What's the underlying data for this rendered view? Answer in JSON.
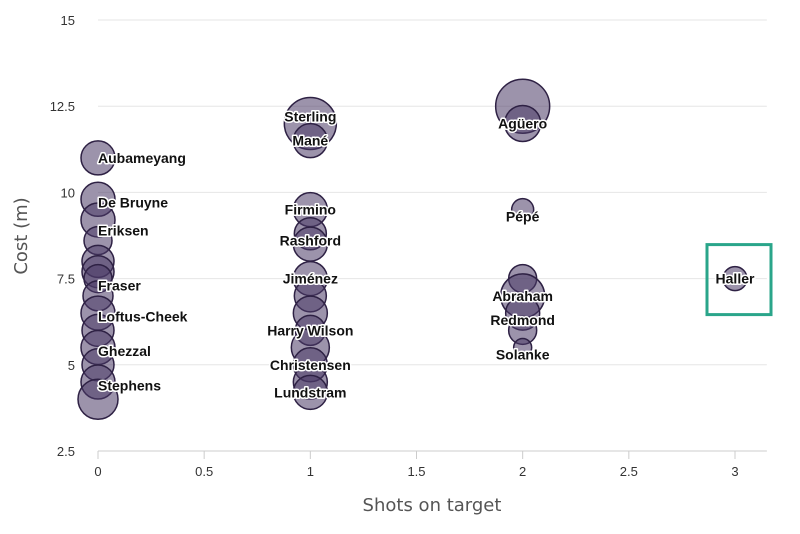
{
  "chart_data": {
    "type": "scatter",
    "title": "",
    "xlabel": "Shots on target",
    "ylabel": "Cost (m)",
    "xlim": [
      0,
      3.15
    ],
    "ylim": [
      2.5,
      15
    ],
    "x_ticks": [
      "0",
      "0.5",
      "1",
      "1.5",
      "2",
      "2.5",
      "3"
    ],
    "x_tick_values": [
      0,
      0.5,
      1,
      1.5,
      2,
      2.5,
      3
    ],
    "y_ticks": [
      "2.5",
      "5",
      "7.5",
      "10",
      "12.5",
      "15"
    ],
    "y_tick_values": [
      2.5,
      5,
      7.5,
      10,
      12.5,
      15
    ],
    "grid": "horizontal",
    "colors": {
      "bubble_fill": "#4a3a66",
      "bubble_stroke": "#2e2144",
      "highlight_box": "#2aa58a"
    },
    "highlight": "Haller",
    "bubbles": [
      {
        "x": 0,
        "y": 11.0,
        "size": 17
      },
      {
        "x": 0,
        "y": 9.8,
        "size": 17
      },
      {
        "x": 0,
        "y": 9.2,
        "size": 17
      },
      {
        "x": 0,
        "y": 8.6,
        "size": 14
      },
      {
        "x": 0,
        "y": 8.0,
        "size": 16
      },
      {
        "x": 0,
        "y": 7.7,
        "size": 16
      },
      {
        "x": 0,
        "y": 7.5,
        "size": 14
      },
      {
        "x": 0,
        "y": 7.0,
        "size": 15
      },
      {
        "x": 0,
        "y": 6.5,
        "size": 17
      },
      {
        "x": 0,
        "y": 6.0,
        "size": 16
      },
      {
        "x": 0,
        "y": 5.5,
        "size": 17
      },
      {
        "x": 0,
        "y": 5.0,
        "size": 16
      },
      {
        "x": 0,
        "y": 4.5,
        "size": 17
      },
      {
        "x": 0,
        "y": 4.0,
        "size": 20
      },
      {
        "x": 1,
        "y": 12.0,
        "size": 26
      },
      {
        "x": 1,
        "y": 11.5,
        "size": 17
      },
      {
        "x": 1,
        "y": 9.5,
        "size": 17
      },
      {
        "x": 1,
        "y": 8.8,
        "size": 16
      },
      {
        "x": 1,
        "y": 8.5,
        "size": 17
      },
      {
        "x": 1,
        "y": 7.5,
        "size": 17
      },
      {
        "x": 1,
        "y": 7.0,
        "size": 16
      },
      {
        "x": 1,
        "y": 6.5,
        "size": 17
      },
      {
        "x": 1,
        "y": 6.0,
        "size": 15
      },
      {
        "x": 1,
        "y": 5.5,
        "size": 19
      },
      {
        "x": 1,
        "y": 5.0,
        "size": 17
      },
      {
        "x": 1,
        "y": 4.5,
        "size": 17
      },
      {
        "x": 1,
        "y": 4.2,
        "size": 17
      },
      {
        "x": 2,
        "y": 12.5,
        "size": 27
      },
      {
        "x": 2,
        "y": 12.0,
        "size": 18
      },
      {
        "x": 2,
        "y": 9.5,
        "size": 11
      },
      {
        "x": 2,
        "y": 7.5,
        "size": 14
      },
      {
        "x": 2,
        "y": 7.0,
        "size": 22
      },
      {
        "x": 2,
        "y": 6.5,
        "size": 17
      },
      {
        "x": 2,
        "y": 6.0,
        "size": 14
      },
      {
        "x": 2,
        "y": 5.5,
        "size": 9
      },
      {
        "x": 3,
        "y": 7.5,
        "size": 12
      }
    ],
    "labels": [
      {
        "text": "Aubameyang",
        "x": 0,
        "y": 11.0
      },
      {
        "text": "De Bruyne",
        "x": 0,
        "y": 9.7
      },
      {
        "text": "Eriksen",
        "x": 0,
        "y": 8.9
      },
      {
        "text": "Fraser",
        "x": 0,
        "y": 7.3
      },
      {
        "text": "Loftus-Cheek",
        "x": 0,
        "y": 6.4
      },
      {
        "text": "Ghezzal",
        "x": 0,
        "y": 5.4
      },
      {
        "text": "Stephens",
        "x": 0,
        "y": 4.4
      },
      {
        "text": "Sterling",
        "x": 1,
        "y": 12.2
      },
      {
        "text": "Mané",
        "x": 1,
        "y": 11.5
      },
      {
        "text": "Firmino",
        "x": 1,
        "y": 9.5
      },
      {
        "text": "Rashford",
        "x": 1,
        "y": 8.6
      },
      {
        "text": "Jiménez",
        "x": 1,
        "y": 7.5
      },
      {
        "text": "Harry Wilson",
        "x": 1,
        "y": 6.0
      },
      {
        "text": "Christensen",
        "x": 1,
        "y": 5.0
      },
      {
        "text": "Lundstram",
        "x": 1,
        "y": 4.2
      },
      {
        "text": "Agüero",
        "x": 2,
        "y": 12.0
      },
      {
        "text": "Pépé",
        "x": 2,
        "y": 9.3
      },
      {
        "text": "Abraham",
        "x": 2,
        "y": 7.0
      },
      {
        "text": "Redmond",
        "x": 2,
        "y": 6.3
      },
      {
        "text": "Solanke",
        "x": 2,
        "y": 5.3
      },
      {
        "text": "Haller",
        "x": 3,
        "y": 7.5
      }
    ]
  }
}
